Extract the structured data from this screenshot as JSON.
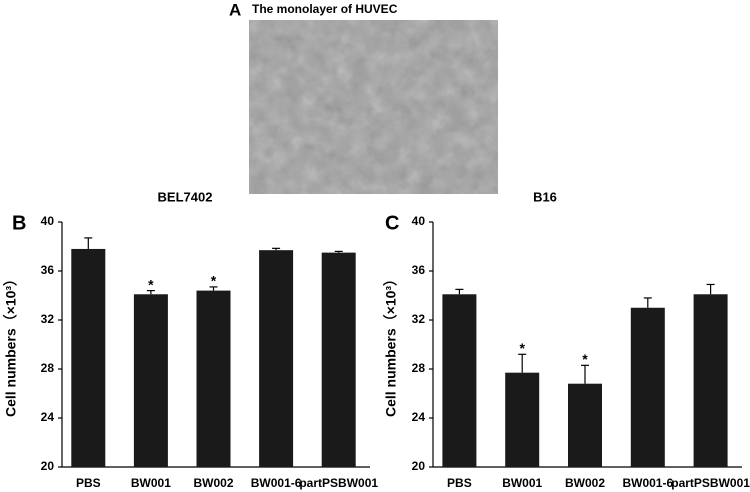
{
  "panel_a": {
    "label": "A",
    "title": "The monolayer of HUVEC"
  },
  "chart_data": [
    {
      "type": "bar",
      "panel_label": "B",
      "title": "BEL7402",
      "y_label": "Cell numbers（×10³）",
      "categories": [
        "PBS",
        "BW001",
        "BW002",
        "BW001-6",
        "partPSBW001"
      ],
      "values": [
        37.8,
        34.1,
        34.4,
        37.7,
        37.5
      ],
      "errors": [
        0.9,
        0.3,
        0.3,
        0.15,
        0.1
      ],
      "significance": [
        null,
        "*",
        "*",
        null,
        null
      ],
      "color": "#1a1a1a",
      "ylim": [
        20,
        40
      ],
      "yticks": [
        20,
        24,
        28,
        32,
        36,
        40
      ],
      "grid": false
    },
    {
      "type": "bar",
      "panel_label": "C",
      "title": "B16",
      "y_label": "Cell numbers（×10³）",
      "categories": [
        "PBS",
        "BW001",
        "BW002",
        "BW001-6",
        "partPSBW001"
      ],
      "values": [
        34.1,
        27.7,
        26.8,
        33.0,
        34.1
      ],
      "errors": [
        0.4,
        1.5,
        1.5,
        0.8,
        0.8
      ],
      "significance": [
        null,
        "*",
        "*",
        null,
        null
      ],
      "color": "#1a1a1a",
      "ylim": [
        20,
        40
      ],
      "yticks": [
        20,
        24,
        28,
        32,
        36,
        40
      ],
      "grid": false
    }
  ]
}
